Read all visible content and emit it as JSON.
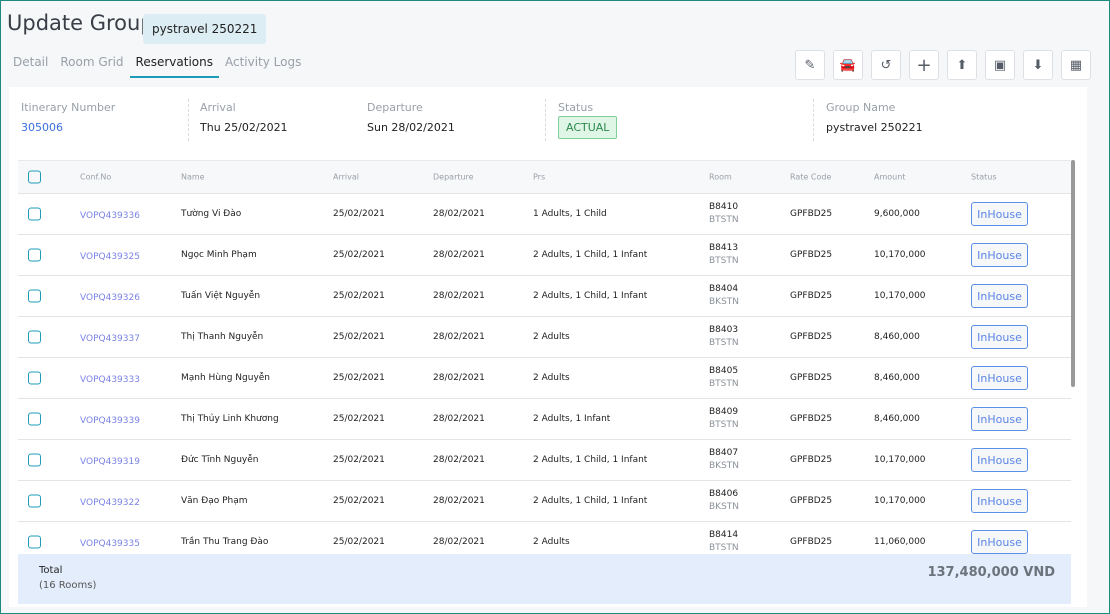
{
  "header": {
    "title": "Update Group",
    "group_badge": "pystravel 250221"
  },
  "tabs": [
    {
      "label": "Detail"
    },
    {
      "label": "Room Grid"
    },
    {
      "label": "Reservations",
      "active": true
    },
    {
      "label": "Activity Logs"
    }
  ],
  "toolbar": [
    "edit-icon",
    "car-icon",
    "history-icon",
    "plus-icon",
    "upload-icon",
    "checkin-icon",
    "download-icon",
    "calendar-icon"
  ],
  "summary": {
    "itinerary_label": "Itinerary Number",
    "itinerary": "305006",
    "arrival_label": "Arrival",
    "arrival": "Thu 25/02/2021",
    "departure_label": "Departure",
    "departure": "Sun 28/02/2021",
    "status_label": "Status",
    "status": "ACTUAL",
    "group_label": "Group Name",
    "group": "pystravel 250221"
  },
  "columns": [
    "Conf.No",
    "Name",
    "Arrival",
    "Departure",
    "Prs",
    "Room",
    "Rate Code",
    "Amount",
    "Status"
  ],
  "rows": [
    {
      "conf": "VOPQ439336",
      "name": "Tường Vi Đào",
      "arrival": "25/02/2021",
      "departure": "28/02/2021",
      "prs": "1 Adults, 1 Child",
      "room": "B8410",
      "type": "BTSTN",
      "rate": "GPFBD25",
      "amount": "9,600,000",
      "status": "InHouse"
    },
    {
      "conf": "VOPQ439325",
      "name": "Ngọc Minh Phạm",
      "arrival": "25/02/2021",
      "departure": "28/02/2021",
      "prs": "2 Adults, 1 Child, 1 Infant",
      "room": "B8413",
      "type": "BTSTN",
      "rate": "GPFBD25",
      "amount": "10,170,000",
      "status": "InHouse"
    },
    {
      "conf": "VOPQ439326",
      "name": "Tuấn Việt Nguyễn",
      "arrival": "25/02/2021",
      "departure": "28/02/2021",
      "prs": "2 Adults, 1 Child, 1 Infant",
      "room": "B8404",
      "type": "BKSTN",
      "rate": "GPFBD25",
      "amount": "10,170,000",
      "status": "InHouse"
    },
    {
      "conf": "VOPQ439337",
      "name": "Thị Thanh Nguyễn",
      "arrival": "25/02/2021",
      "departure": "28/02/2021",
      "prs": "2 Adults",
      "room": "B8403",
      "type": "BTSTN",
      "rate": "GPFBD25",
      "amount": "8,460,000",
      "status": "InHouse"
    },
    {
      "conf": "VOPQ439333",
      "name": "Mạnh Hùng Nguyễn",
      "arrival": "25/02/2021",
      "departure": "28/02/2021",
      "prs": "2 Adults",
      "room": "B8405",
      "type": "BTSTN",
      "rate": "GPFBD25",
      "amount": "8,460,000",
      "status": "InHouse"
    },
    {
      "conf": "VOPQ439339",
      "name": "Thị Thủy Linh Khương",
      "arrival": "25/02/2021",
      "departure": "28/02/2021",
      "prs": "2 Adults, 1 Infant",
      "room": "B8409",
      "type": "BTSTN",
      "rate": "GPFBD25",
      "amount": "8,460,000",
      "status": "InHouse"
    },
    {
      "conf": "VOPQ439319",
      "name": "Đức Tĩnh Nguyễn",
      "arrival": "25/02/2021",
      "departure": "28/02/2021",
      "prs": "2 Adults, 1 Child, 1 Infant",
      "room": "B8407",
      "type": "BKSTN",
      "rate": "GPFBD25",
      "amount": "10,170,000",
      "status": "InHouse"
    },
    {
      "conf": "VOPQ439322",
      "name": "Văn Đạo Phạm",
      "arrival": "25/02/2021",
      "departure": "28/02/2021",
      "prs": "2 Adults, 1 Child, 1 Infant",
      "room": "B8406",
      "type": "BKSTN",
      "rate": "GPFBD25",
      "amount": "10,170,000",
      "status": "InHouse"
    },
    {
      "conf": "VOPQ439335",
      "name": "Trần Thu Trang Đào",
      "arrival": "25/02/2021",
      "departure": "28/02/2021",
      "prs": "2 Adults",
      "room": "B8414",
      "type": "BTSTN",
      "rate": "GPFBD25",
      "amount": "11,060,000",
      "status": "InHouse"
    }
  ],
  "total": {
    "label": "Total",
    "rooms": "(16 Rooms)",
    "amount": "137,480,000 VND"
  }
}
